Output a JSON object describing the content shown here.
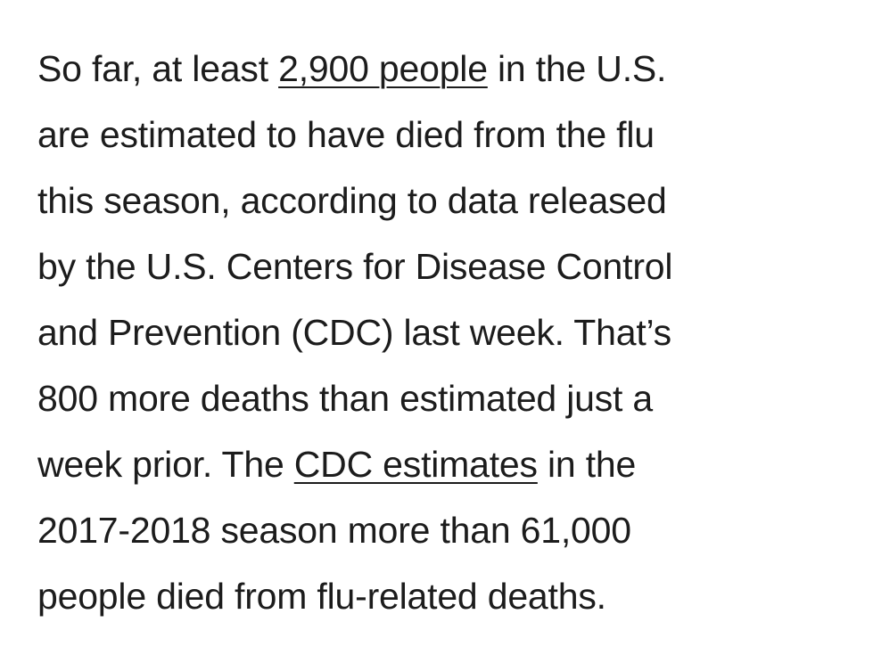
{
  "article": {
    "line_1": {
      "before": "So far, at least ",
      "link": "2,900 people",
      "after": " in the U.S."
    },
    "line_2": "are estimated to have died from the flu",
    "line_3": "this season, according to data released",
    "line_4": "by the U.S. Centers for Disease Control",
    "line_5": "and Prevention (CDC) last week. That’s",
    "line_6": "800 more deaths than estimated just a",
    "line_7": {
      "before": "week prior. The ",
      "link": "CDC estimates",
      "after": " in the"
    },
    "line_8": "2017-2018 season more than 61,000",
    "line_9": "people died from flu-related deaths."
  }
}
